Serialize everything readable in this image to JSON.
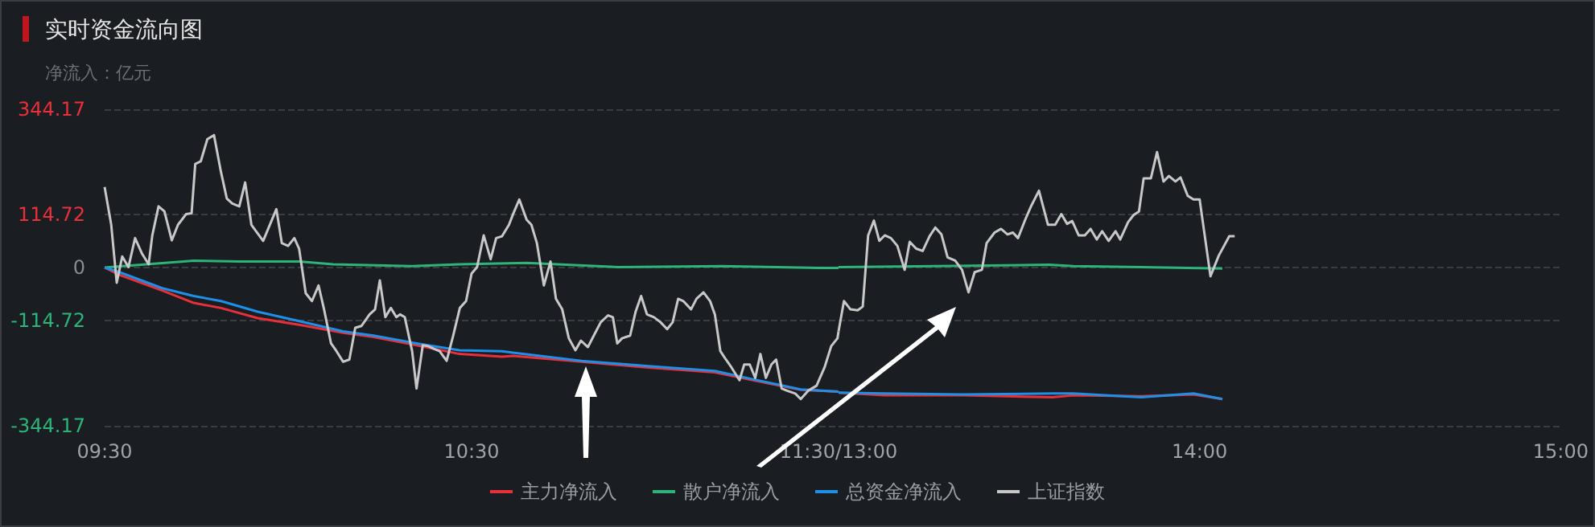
{
  "chart_data": [
    {
      "type": "line",
      "title": "实时资金流向图",
      "subtitle": "净流入：亿元",
      "xlim": [
        9.5,
        11.5
      ],
      "xticks": [
        {
          "value": 9.5,
          "label": "09:30"
        },
        {
          "value": 10.5,
          "label": "10:30"
        },
        {
          "value": 11.5,
          "label": "11:30/13:00"
        }
      ],
      "ylim": [
        -344.17,
        344.17
      ],
      "yticks": [
        -344.17,
        -114.72,
        0,
        114.72,
        344.17
      ],
      "grid": "y",
      "legend": "bottom",
      "marker": "none",
      "line_style": "solid",
      "series": [
        {
          "name": "主力净流入",
          "color": "#e8303a",
          "x": [
            9.5,
            9.54,
            9.657,
            9.743,
            9.817,
            9.917,
            10.033,
            10.15,
            10.233,
            10.35,
            10.467,
            10.583,
            10.613,
            10.8,
            10.975,
            11.163,
            11.267,
            11.397,
            11.5
          ],
          "values": [
            0,
            -16,
            -50,
            -77,
            -88,
            -110,
            -125,
            -142,
            -151,
            -169,
            -188,
            -194,
            -192,
            -205,
            -217,
            -228,
            -245,
            -266,
            -270
          ]
        },
        {
          "name": "散户净流入",
          "color": "#2db47a",
          "x": [
            9.5,
            9.743,
            9.867,
            10.03,
            10.123,
            10.338,
            10.467,
            10.65,
            10.9,
            11.183,
            11.467,
            11.5
          ],
          "values": [
            0,
            15,
            13,
            13,
            7,
            3,
            7,
            10,
            1,
            3,
            -1,
            -1
          ]
        },
        {
          "name": "总资金净流入",
          "color": "#1e90e8",
          "x": [
            9.5,
            9.54,
            9.657,
            9.743,
            9.817,
            9.917,
            10.033,
            10.15,
            10.233,
            10.35,
            10.467,
            10.583,
            10.613,
            10.8,
            10.975,
            11.163,
            11.267,
            11.397,
            11.5
          ],
          "values": [
            0,
            -10,
            -45,
            -62,
            -73,
            -96,
            -117,
            -139,
            -148,
            -165,
            -180,
            -182,
            -185,
            -203,
            -214,
            -225,
            -243,
            -265,
            -270
          ]
        },
        {
          "name": "上证指数",
          "color": "#c8c8c8",
          "x": [
            9.5,
            9.518,
            9.533,
            9.548,
            9.565,
            9.583,
            9.602,
            9.62,
            9.63,
            9.647,
            9.663,
            9.683,
            9.7,
            9.722,
            9.737,
            9.747,
            9.762,
            9.78,
            9.798,
            9.817,
            9.833,
            9.848,
            9.867,
            9.883,
            9.9,
            9.932,
            9.968,
            9.983,
            10,
            10.017,
            10.03,
            10.048,
            10.065,
            10.083,
            10.098,
            10.117,
            10.132,
            10.15,
            10.167,
            10.183,
            10.2,
            10.222,
            10.237,
            10.25,
            10.265,
            10.28,
            10.295,
            10.305,
            10.318,
            10.338,
            10.35,
            10.367,
            10.382,
            10.398,
            10.413,
            10.432,
            10.45,
            10.468,
            10.485,
            10.5,
            10.515,
            10.533,
            10.552,
            10.567,
            10.583,
            10.602,
            10.613,
            10.63,
            10.65,
            10.663,
            10.678,
            10.697,
            10.715,
            10.73,
            10.747,
            10.765,
            10.783,
            10.798,
            10.817,
            10.833,
            10.852,
            10.872,
            10.885,
            10.897,
            10.91,
            10.932,
            10.947,
            10.962,
            10.978,
            10.997,
            11.015,
            11.033,
            11.048,
            11.063,
            11.077,
            11.098,
            11.113,
            11.132,
            11.15,
            11.163,
            11.178,
            11.193,
            11.208,
            11.23,
            11.243,
            11.258,
            11.273,
            11.287,
            11.302,
            11.317,
            11.33,
            11.345,
            11.36,
            11.382,
            11.397,
            11.417,
            11.44,
            11.462,
            11.48,
            11.497,
            11.5
          ],
          "values": [
            175,
            93,
            -33,
            24,
            1,
            64,
            30,
            7,
            70,
            133,
            122,
            59,
            93,
            116,
            118,
            225,
            231,
            279,
            288,
            208,
            150,
            139,
            133,
            185,
            93,
            58,
            127,
            53,
            47,
            64,
            41,
            -56,
            -73,
            -39,
            -91,
            -165,
            -182,
            -205,
            -200,
            -131,
            -127,
            -102,
            -91,
            -28,
            -108,
            -88,
            -108,
            -102,
            -108,
            -182,
            -263,
            -169,
            -171,
            -177,
            -182,
            -203,
            -148,
            -88,
            -73,
            -13,
            1,
            70,
            18,
            64,
            68,
            93,
            116,
            148,
            104,
            93,
            53,
            -39,
            13,
            -68,
            -91,
            -154,
            -180,
            -159,
            -173,
            -148,
            -119,
            -104,
            -108,
            -165,
            -154,
            -148,
            -96,
            -62,
            -102,
            -108,
            -119,
            -134,
            -119,
            -68,
            -73,
            -91,
            -68,
            -54,
            -73,
            -102,
            -182,
            -200,
            -217,
            -245,
            -211,
            -211,
            -240,
            -188,
            -240,
            -211,
            -200,
            -263,
            -268,
            -274,
            -286,
            -268,
            -257,
            -217,
            -171,
            -154,
            -139
          ]
        }
      ]
    },
    {
      "type": "line",
      "tick_labels": "x",
      "xlim": [
        13,
        15
      ],
      "xticks": [
        {
          "value": 14,
          "label": "14:00"
        },
        {
          "value": 15,
          "label": "15:00"
        }
      ],
      "ylim": [
        -344.17,
        344.17
      ],
      "yticks": [
        -344.17,
        -114.72,
        0,
        114.72,
        344.17
      ],
      "grid": "y",
      "marker": "none",
      "line_style": "solid",
      "series": [
        {
          "name": "主力净流入",
          "color": "#e8303a",
          "x": [
            13,
            13.128,
            13.345,
            13.592,
            13.65,
            13.838,
            13.983,
            14.063
          ],
          "values": [
            -272,
            -278,
            -278,
            -282,
            -278,
            -280,
            -276,
            -286
          ]
        },
        {
          "name": "散户净流入",
          "color": "#2db47a",
          "x": [
            13,
            13.267,
            13.583,
            13.65,
            13.838,
            14.063
          ],
          "values": [
            1,
            3,
            6,
            3,
            1,
            -2
          ]
        },
        {
          "name": "总资金净流入",
          "color": "#1e90e8",
          "x": [
            13,
            13.128,
            13.345,
            13.592,
            13.65,
            13.838,
            13.983,
            14.063
          ],
          "values": [
            -272,
            -274,
            -276,
            -274,
            -274,
            -282,
            -274,
            -286
          ]
        },
        {
          "name": "上证指数",
          "color": "#c8c8c8",
          "x": [
            13,
            13.015,
            13.033,
            13.053,
            13.067,
            13.082,
            13.098,
            13.113,
            13.128,
            13.145,
            13.163,
            13.183,
            13.197,
            13.215,
            13.233,
            13.252,
            13.268,
            13.285,
            13.302,
            13.323,
            13.342,
            13.36,
            13.377,
            13.397,
            13.41,
            13.432,
            13.45,
            13.468,
            13.483,
            13.497,
            13.517,
            13.533,
            13.555,
            13.58,
            13.6,
            13.617,
            13.633,
            13.647,
            13.665,
            13.682,
            13.698,
            13.715,
            13.73,
            13.748,
            13.767,
            13.78,
            13.802,
            13.817,
            13.832,
            13.845,
            13.865,
            13.882,
            13.9,
            13.915,
            13.933,
            13.947,
            13.967,
            13.983,
            14,
            14.03,
            14.053,
            14.082,
            14.097
          ],
          "values": [
            -139,
            -73,
            -91,
            -93,
            -85,
            70,
            102,
            58,
            70,
            64,
            47,
            -5,
            56,
            41,
            36,
            68,
            87,
            72,
            22,
            15,
            -5,
            -54,
            -10,
            -5,
            53,
            76,
            84,
            72,
            76,
            64,
            104,
            133,
            167,
            93,
            93,
            116,
            95,
            101,
            70,
            70,
            84,
            61,
            79,
            58,
            79,
            61,
            99,
            114,
            122,
            194,
            194,
            251,
            187,
            199,
            187,
            196,
            156,
            148,
            148,
            -19,
            26,
            68,
            68
          ]
        }
      ]
    }
  ]
}
